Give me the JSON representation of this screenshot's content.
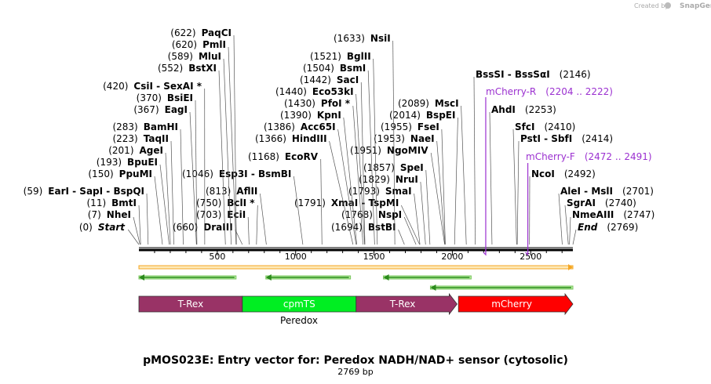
{
  "credit": {
    "prefix": "Created by",
    "brand": "SnapGene"
  },
  "plasmid": {
    "title": "pMOS023E: Entry vector for: Peredox NADH/NAD+ sensor (cytosolic)",
    "length_label": "2769 bp",
    "length": 2769
  },
  "ruler": {
    "ticks": [
      "500",
      "1000",
      "1500",
      "2000",
      "2500"
    ],
    "tick_values": [
      500,
      1000,
      1500,
      2000,
      2500
    ]
  },
  "left_sites": [
    {
      "pos": "(622)",
      "name": "PaqCI",
      "site": 622
    },
    {
      "pos": "(620)",
      "name": "PmlI",
      "site": 620
    },
    {
      "pos": "(589)",
      "name": "MluI",
      "site": 589
    },
    {
      "pos": "(552)",
      "name": "BstXI",
      "site": 552
    },
    {
      "pos": "(420)",
      "name": "CsiI  - SexAI *",
      "site": 420
    },
    {
      "pos": "(370)",
      "name": "BsiEI",
      "site": 370
    },
    {
      "pos": "(367)",
      "name": "EagI",
      "site": 367
    },
    {
      "pos": "(283)",
      "name": "BamHI",
      "site": 283
    },
    {
      "pos": "(223)",
      "name": "TaqII",
      "site": 223
    },
    {
      "pos": "(201)",
      "name": "AgeI",
      "site": 201
    },
    {
      "pos": "(193)",
      "name": "BpuEI",
      "site": 193
    },
    {
      "pos": "(150)",
      "name": "PpuMI",
      "site": 150
    },
    {
      "pos": "(59)",
      "name": "EarI  - SapI  - BspQI",
      "site": 59
    },
    {
      "pos": "(11)",
      "name": "BmtI",
      "site": 11
    },
    {
      "pos": "(7)",
      "name": "NheI",
      "site": 7
    },
    {
      "pos": "(0)",
      "name": "Start",
      "site": 0,
      "italic": true
    }
  ],
  "mid_sites": [
    {
      "pos": "(1046)",
      "name": "Esp3I  - BsmBI",
      "site": 1046
    },
    {
      "pos": "(813)",
      "name": "AflII",
      "site": 813
    },
    {
      "pos": "(750)",
      "name": "BclI *",
      "site": 750
    },
    {
      "pos": "(703)",
      "name": "EciI",
      "site": 703
    },
    {
      "pos": "(660)",
      "name": "DraIII",
      "site": 660
    },
    {
      "pos": "(1168)",
      "name": "EcoRV",
      "site": 1168
    },
    {
      "pos": "(1633)",
      "name": "NsiI",
      "site": 1633
    },
    {
      "pos": "(1521)",
      "name": "BglII",
      "site": 1521
    },
    {
      "pos": "(1504)",
      "name": "BsmI",
      "site": 1504
    },
    {
      "pos": "(1442)",
      "name": "SacI",
      "site": 1442
    },
    {
      "pos": "(1440)",
      "name": "Eco53kI",
      "site": 1440
    },
    {
      "pos": "(1430)",
      "name": "PfoI *",
      "site": 1430
    },
    {
      "pos": "(1390)",
      "name": "KpnI",
      "site": 1390
    },
    {
      "pos": "(1386)",
      "name": "Acc65I",
      "site": 1386
    },
    {
      "pos": "(1366)",
      "name": "HindIII",
      "site": 1366
    },
    {
      "pos": "(1791)",
      "name": "XmaI  - TspMI",
      "site": 1791
    },
    {
      "pos": "(1768)",
      "name": "NspI",
      "site": 1768
    },
    {
      "pos": "(1694)",
      "name": "BstBI",
      "site": 1694
    },
    {
      "pos": "(1793)",
      "name": "SmaI",
      "site": 1793
    },
    {
      "pos": "(1829)",
      "name": "NruI",
      "site": 1829
    },
    {
      "pos": "(1857)",
      "name": "SpeI",
      "site": 1857
    },
    {
      "pos": "(1951)",
      "name": "NgoMIV",
      "site": 1951
    },
    {
      "pos": "(1953)",
      "name": "NaeI",
      "site": 1953
    },
    {
      "pos": "(1955)",
      "name": "FseI",
      "site": 1955
    },
    {
      "pos": "(2014)",
      "name": "BspEI",
      "site": 2014
    },
    {
      "pos": "(2089)",
      "name": "MscI",
      "site": 2089
    }
  ],
  "right_sites": [
    {
      "name": "BssSI  - BssSαI",
      "pos": "(2146)",
      "site": 2146
    },
    {
      "name": "AhdI",
      "pos": "(2253)",
      "site": 2253
    },
    {
      "name": "SfcI",
      "pos": "(2410)",
      "site": 2410
    },
    {
      "name": "PstI  - SbfI",
      "pos": "(2414)",
      "site": 2414
    },
    {
      "name": "NcoI",
      "pos": "(2492)",
      "site": 2492
    },
    {
      "name": "AleI  - MslI",
      "pos": "(2701)",
      "site": 2701
    },
    {
      "name": "SgrAI",
      "pos": "(2740)",
      "site": 2740
    },
    {
      "name": "NmeAIII",
      "pos": "(2747)",
      "site": 2747
    },
    {
      "name": "End",
      "pos": "(2769)",
      "site": 2769,
      "italic": true
    }
  ],
  "primers": [
    {
      "name": "mCherry-R",
      "range": "(2204 .. 2222)",
      "start": 2204,
      "end": 2222
    },
    {
      "name": "mCherry-F",
      "range": "(2472 .. 2491)",
      "start": 2472,
      "end": 2491
    }
  ],
  "features": [
    {
      "label": "T-Rex",
      "color": "#993366",
      "start": 1,
      "end": 660
    },
    {
      "label": "cpmTS",
      "color": "#00ee22",
      "start": 661,
      "end": 1386
    },
    {
      "label": "T-Rex",
      "color": "#993366",
      "start": 1387,
      "end": 2030
    },
    {
      "label": "mCherry",
      "color": "#ff0000",
      "start": 2040,
      "end": 2769
    }
  ],
  "feature_group_label": "Peredox",
  "colors": {
    "orf": "#f5a623",
    "orf_fill": "#fde9b8",
    "rev_arrow": "#2b8a1c",
    "rev_fill": "#b8f0a0",
    "primer": "#9b30d0",
    "backbone": "#000000"
  }
}
